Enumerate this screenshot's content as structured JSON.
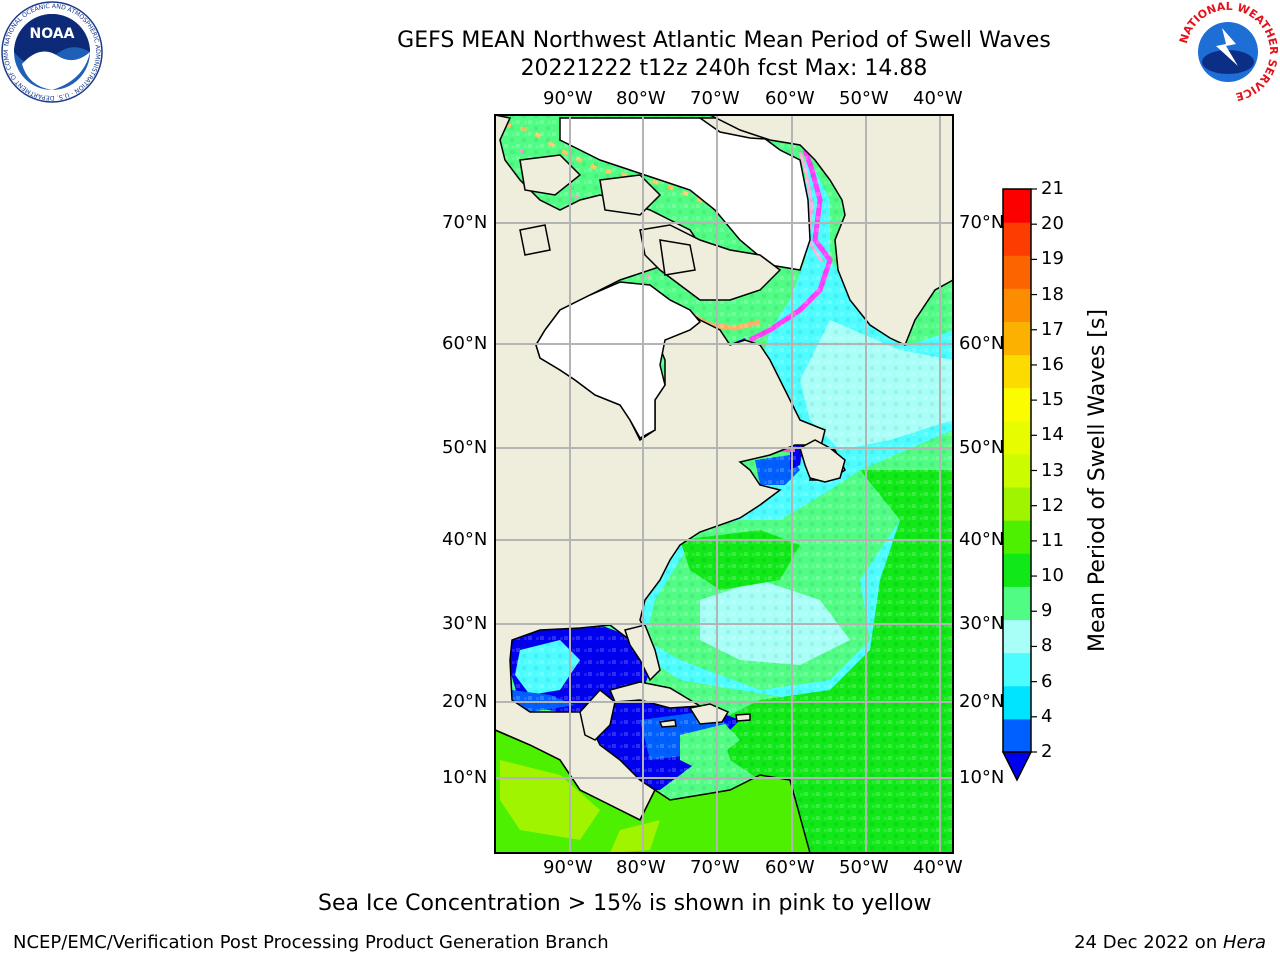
{
  "header": {
    "title_line1": "GEFS MEAN Northwest Atlantic Mean Period of Swell Waves",
    "title_line2": "20221222 t12z 240h fcst   Max: 14.88"
  },
  "logos": {
    "left": "NOAA",
    "left_ring": "NATIONAL OCEANIC AND ATMOSPHERIC ADMINISTRATION · U.S. DEPARTMENT OF COMMERCE",
    "right_ring": "NATIONAL WEATHER SERVICE"
  },
  "map": {
    "lon_labels_top": [
      "90°W",
      "80°W",
      "70°W",
      "60°W",
      "50°W",
      "40°W"
    ],
    "lon_labels_bottom": [
      "90°W",
      "80°W",
      "70°W",
      "60°W",
      "50°W",
      "40°W"
    ],
    "lat_labels_left": [
      "70°N",
      "60°N",
      "50°N",
      "40°N",
      "30°N",
      "20°N",
      "10°N"
    ],
    "lat_labels_right": [
      "70°N",
      "60°N",
      "50°N",
      "40°N",
      "30°N",
      "20°N",
      "10°N"
    ],
    "colors": {
      "land": "#efeddc",
      "ice_shelf": "#ffffff",
      "grid": "#b4b4b4",
      "coast": "#000000"
    }
  },
  "colorbar": {
    "label": "Mean Period of Swell Waves [s]",
    "ticks": [
      "21",
      "20",
      "19",
      "18",
      "17",
      "16",
      "15",
      "14",
      "13",
      "12",
      "11",
      "10",
      "9",
      "8",
      "6",
      "4",
      "2"
    ],
    "colors_bottom_to_top": [
      "#0060ff",
      "#00e4ff",
      "#4cfcff",
      "#a8fff8",
      "#50fc84",
      "#10e818",
      "#4cf000",
      "#a0f400",
      "#ccfc00",
      "#e8fc00",
      "#fcfc00",
      "#fcdc00",
      "#fcb000",
      "#fc8c00",
      "#fc6400",
      "#fc3c00",
      "#fc0000"
    ],
    "under_color": "#0000f0"
  },
  "caption": "Sea Ice Concentration > 15% is shown in pink to yellow",
  "footer": {
    "left": "NCEP/EMC/Verification Post Processing Product Generation Branch",
    "right_prefix": "24 Dec 2022 on ",
    "right_host": "Hera"
  }
}
